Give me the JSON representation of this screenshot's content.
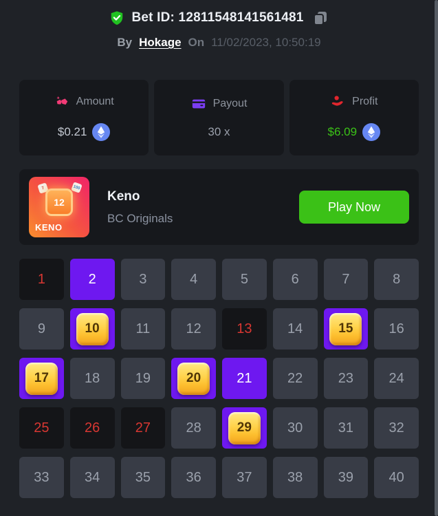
{
  "header": {
    "bet_id": "Bet ID: 12811548141561481",
    "by_label": "By",
    "username": "Hokage",
    "on_label": "On",
    "timestamp": "11/02/2023, 10:50:19"
  },
  "stats": [
    {
      "label": "Amount",
      "value": "$0.21",
      "icon": "gems-icon",
      "coin": "eth-coin-icon"
    },
    {
      "label": "Payout",
      "value": "30 x",
      "icon": "credit-card-icon",
      "coin": null
    },
    {
      "label": "Profit",
      "value": "$6.09",
      "icon": "hand-coin-icon",
      "coin": "eth-coin-icon"
    }
  ],
  "game": {
    "title": "Keno",
    "provider": "BC Originals",
    "play_button": "Play Now",
    "thumb": {
      "label": "KENO",
      "gem_number": "12",
      "mini_left": "7",
      "mini_right": "100"
    }
  },
  "keno": {
    "tiles": [
      {
        "n": "1",
        "state": "miss"
      },
      {
        "n": "2",
        "state": "selected"
      },
      {
        "n": "3",
        "state": "normal"
      },
      {
        "n": "4",
        "state": "normal"
      },
      {
        "n": "5",
        "state": "normal"
      },
      {
        "n": "6",
        "state": "normal"
      },
      {
        "n": "7",
        "state": "normal"
      },
      {
        "n": "8",
        "state": "normal"
      },
      {
        "n": "9",
        "state": "normal"
      },
      {
        "n": "10",
        "state": "hit"
      },
      {
        "n": "11",
        "state": "normal"
      },
      {
        "n": "12",
        "state": "normal"
      },
      {
        "n": "13",
        "state": "miss"
      },
      {
        "n": "14",
        "state": "normal"
      },
      {
        "n": "15",
        "state": "hit"
      },
      {
        "n": "16",
        "state": "normal"
      },
      {
        "n": "17",
        "state": "hit"
      },
      {
        "n": "18",
        "state": "normal"
      },
      {
        "n": "19",
        "state": "normal"
      },
      {
        "n": "20",
        "state": "hit"
      },
      {
        "n": "21",
        "state": "selected"
      },
      {
        "n": "22",
        "state": "normal"
      },
      {
        "n": "23",
        "state": "normal"
      },
      {
        "n": "24",
        "state": "normal"
      },
      {
        "n": "25",
        "state": "miss"
      },
      {
        "n": "26",
        "state": "miss"
      },
      {
        "n": "27",
        "state": "miss"
      },
      {
        "n": "28",
        "state": "normal"
      },
      {
        "n": "29",
        "state": "hit"
      },
      {
        "n": "30",
        "state": "normal"
      },
      {
        "n": "31",
        "state": "normal"
      },
      {
        "n": "32",
        "state": "normal"
      },
      {
        "n": "33",
        "state": "normal"
      },
      {
        "n": "34",
        "state": "normal"
      },
      {
        "n": "35",
        "state": "normal"
      },
      {
        "n": "36",
        "state": "normal"
      },
      {
        "n": "37",
        "state": "normal"
      },
      {
        "n": "38",
        "state": "normal"
      },
      {
        "n": "39",
        "state": "normal"
      },
      {
        "n": "40",
        "state": "normal"
      }
    ]
  },
  "colors": {
    "page_bg": "#1f2227",
    "accent_purple": "#6e18f0",
    "green": "#3bc117",
    "miss_red": "#d83732",
    "gold": "#ffc93c",
    "eth_blue": "#6687f2",
    "pink": "#f23b76",
    "card_purple": "#7b3df2",
    "hand_red": "#e1262d",
    "verified_green": "#21c221"
  }
}
